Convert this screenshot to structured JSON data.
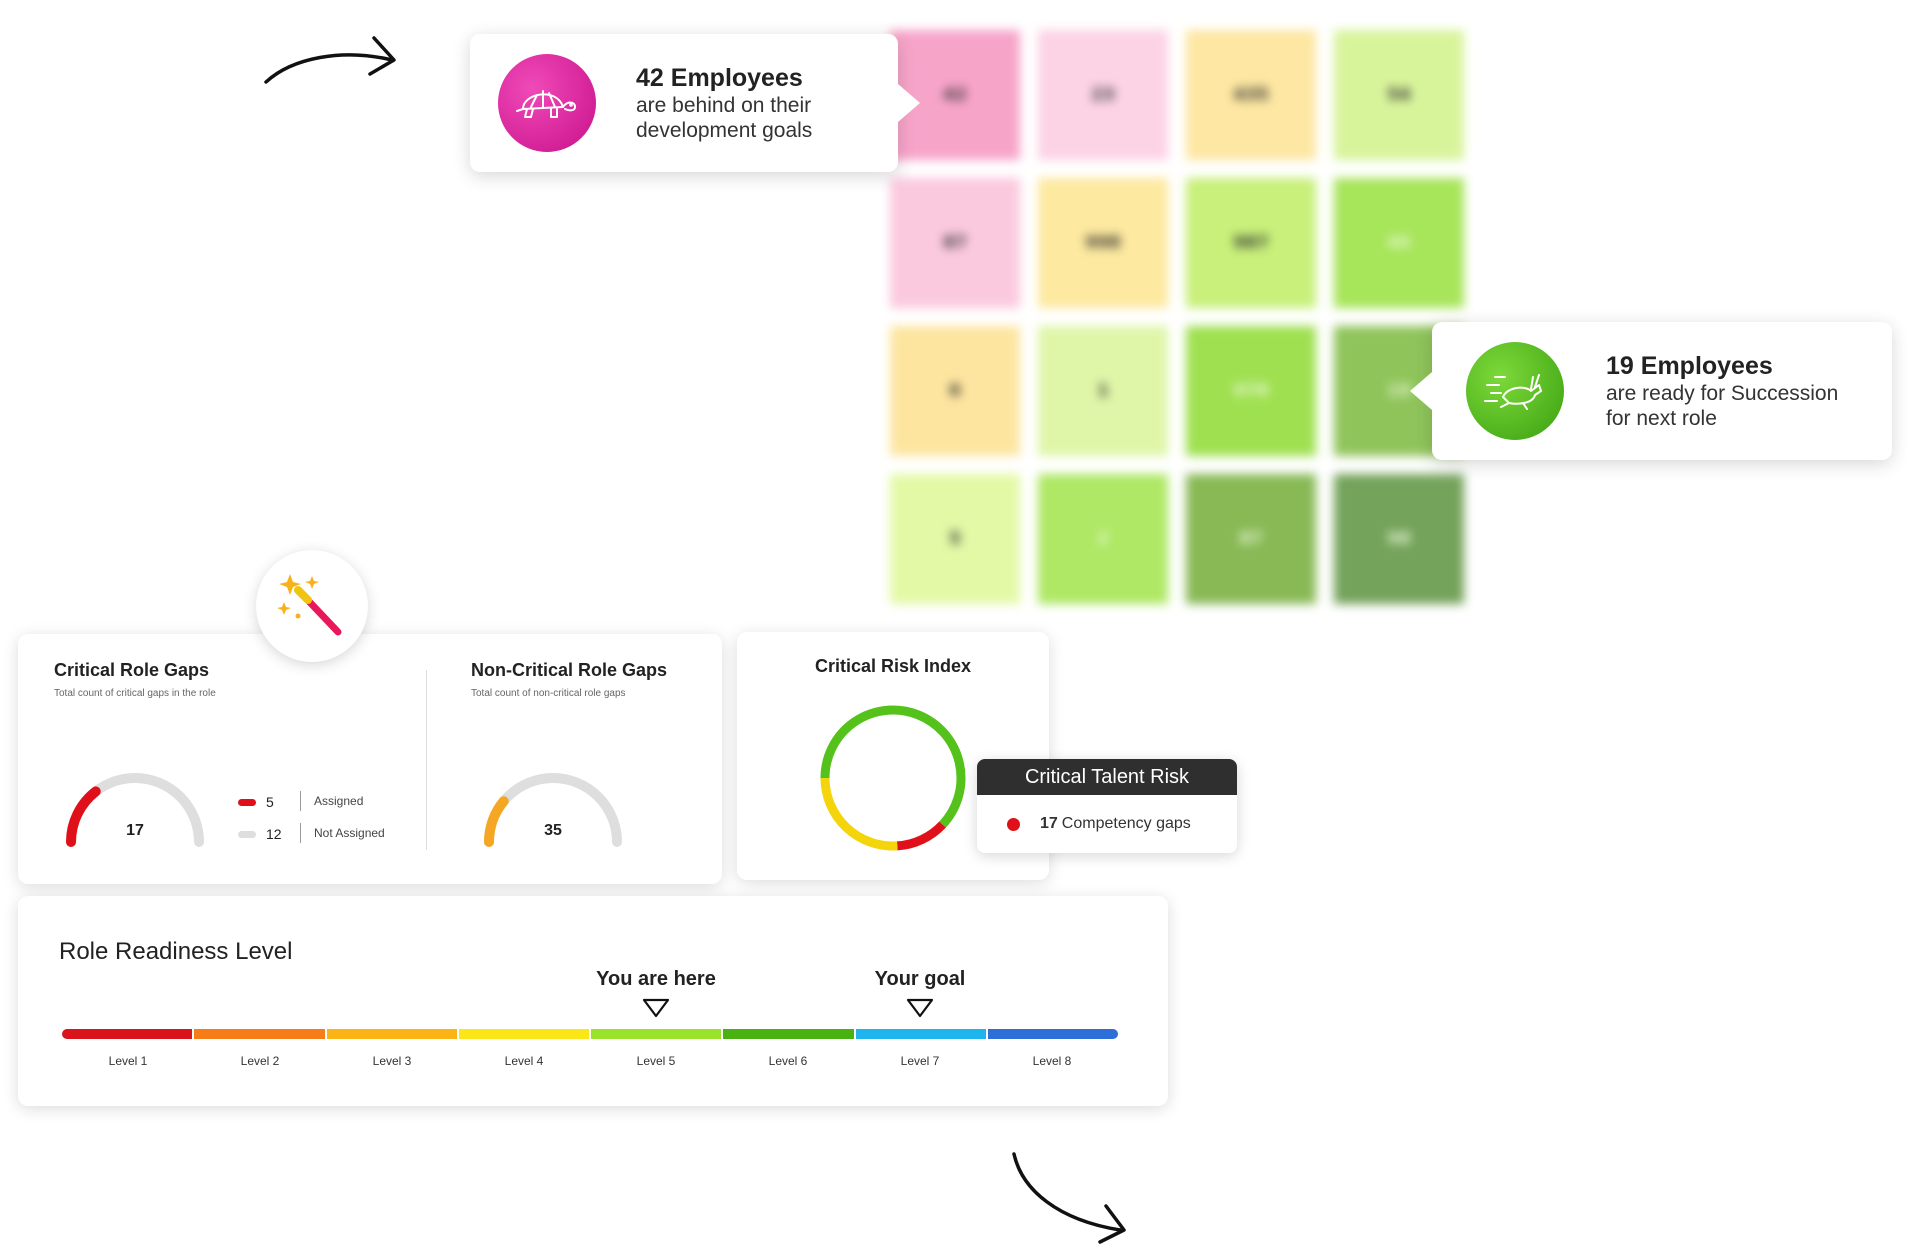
{
  "colors": {
    "magenta": "#e0109a",
    "green": "#54c21a",
    "red": "#e0101a",
    "yellow": "#f4d40a",
    "orange": "#f5a623",
    "gauge_track": "#dedede"
  },
  "heatmap": {
    "cells": [
      {
        "value": "42",
        "color": "#f7a4c9",
        "text_color": "#333"
      },
      {
        "value": "23",
        "color": "#fcd3e4",
        "text_color": "#333"
      },
      {
        "value": "435",
        "color": "#fde7a2",
        "text_color": "#333"
      },
      {
        "value": "54",
        "color": "#d8f49b",
        "text_color": "#333"
      },
      {
        "value": "87",
        "color": "#fbc9dd",
        "text_color": "#333"
      },
      {
        "value": "998",
        "color": "#fde99f",
        "text_color": "#333"
      },
      {
        "value": "987",
        "color": "#c8f07a",
        "text_color": "#333"
      },
      {
        "value": "45",
        "color": "#a7e55a",
        "text_color": "#e9f7d8"
      },
      {
        "value": "6",
        "color": "#fde5a0",
        "text_color": "#333"
      },
      {
        "value": "1",
        "color": "#dff6a8",
        "text_color": "#333"
      },
      {
        "value": "978",
        "color": "#9fe050",
        "text_color": "#e9f7d8"
      },
      {
        "value": "19",
        "color": "#8fc45a",
        "text_color": "#e9f7d8"
      },
      {
        "value": "5",
        "color": "#e3f9a6",
        "text_color": "#333"
      },
      {
        "value": "2",
        "color": "#aee864",
        "text_color": "#e9f7d8"
      },
      {
        "value": "87",
        "color": "#88b955",
        "text_color": "#e9f7d8"
      },
      {
        "value": "98",
        "color": "#74a35b",
        "text_color": "#e9f7d8"
      }
    ]
  },
  "callouts": {
    "behind": {
      "icon": "turtle-icon",
      "count": "42",
      "headline_word": "Employees",
      "line1": "are behind on their",
      "line2": "development goals"
    },
    "ready": {
      "icon": "running-rabbit-icon",
      "count": "19",
      "headline_word": "Employees",
      "line1": "are ready for Succession",
      "line2": "for next role"
    }
  },
  "decor": {
    "wand_icon": "magic-wand-icon",
    "arrow_icon": "curved-arrow-icon"
  },
  "gaps": {
    "critical": {
      "title": "Critical Role Gaps",
      "subtitle": "Total count of critical gaps in the role",
      "total": "17",
      "fill_fraction": 0.29,
      "legend": [
        {
          "value": "5",
          "label": "Assigned",
          "color": "#e0101a"
        },
        {
          "value": "12",
          "label": "Not Assigned",
          "color": "#dedede"
        }
      ]
    },
    "noncritical": {
      "title": "Non-Critical Role Gaps",
      "subtitle": "Total count of non-critical role gaps",
      "total": "35",
      "fill_fraction": 0.22
    }
  },
  "risk": {
    "title": "Critical Risk Index",
    "donut_segments": [
      {
        "color": "#54c21a",
        "fraction": 0.62
      },
      {
        "color": "#e0101a",
        "fraction": 0.12
      },
      {
        "color": "#f4d40a",
        "fraction": 0.26
      }
    ],
    "tooltip": {
      "title": "Critical Talent Risk",
      "count": "17",
      "label": "Competency gaps"
    }
  },
  "readiness": {
    "title": "Role Readiness Level",
    "current_label": "You are here",
    "current_level": 5,
    "goal_label": "Your goal",
    "goal_level": 7,
    "levels": [
      {
        "label": "Level 1",
        "color": "#d9141b"
      },
      {
        "label": "Level 2",
        "color": "#f57c17"
      },
      {
        "label": "Level 3",
        "color": "#fbb316"
      },
      {
        "label": "Level 4",
        "color": "#fbe717"
      },
      {
        "label": "Level 5",
        "color": "#9be22a"
      },
      {
        "label": "Level 6",
        "color": "#4ab113"
      },
      {
        "label": "Level 7",
        "color": "#1eb4ee"
      },
      {
        "label": "Level 8",
        "color": "#2e6ed8"
      }
    ]
  }
}
